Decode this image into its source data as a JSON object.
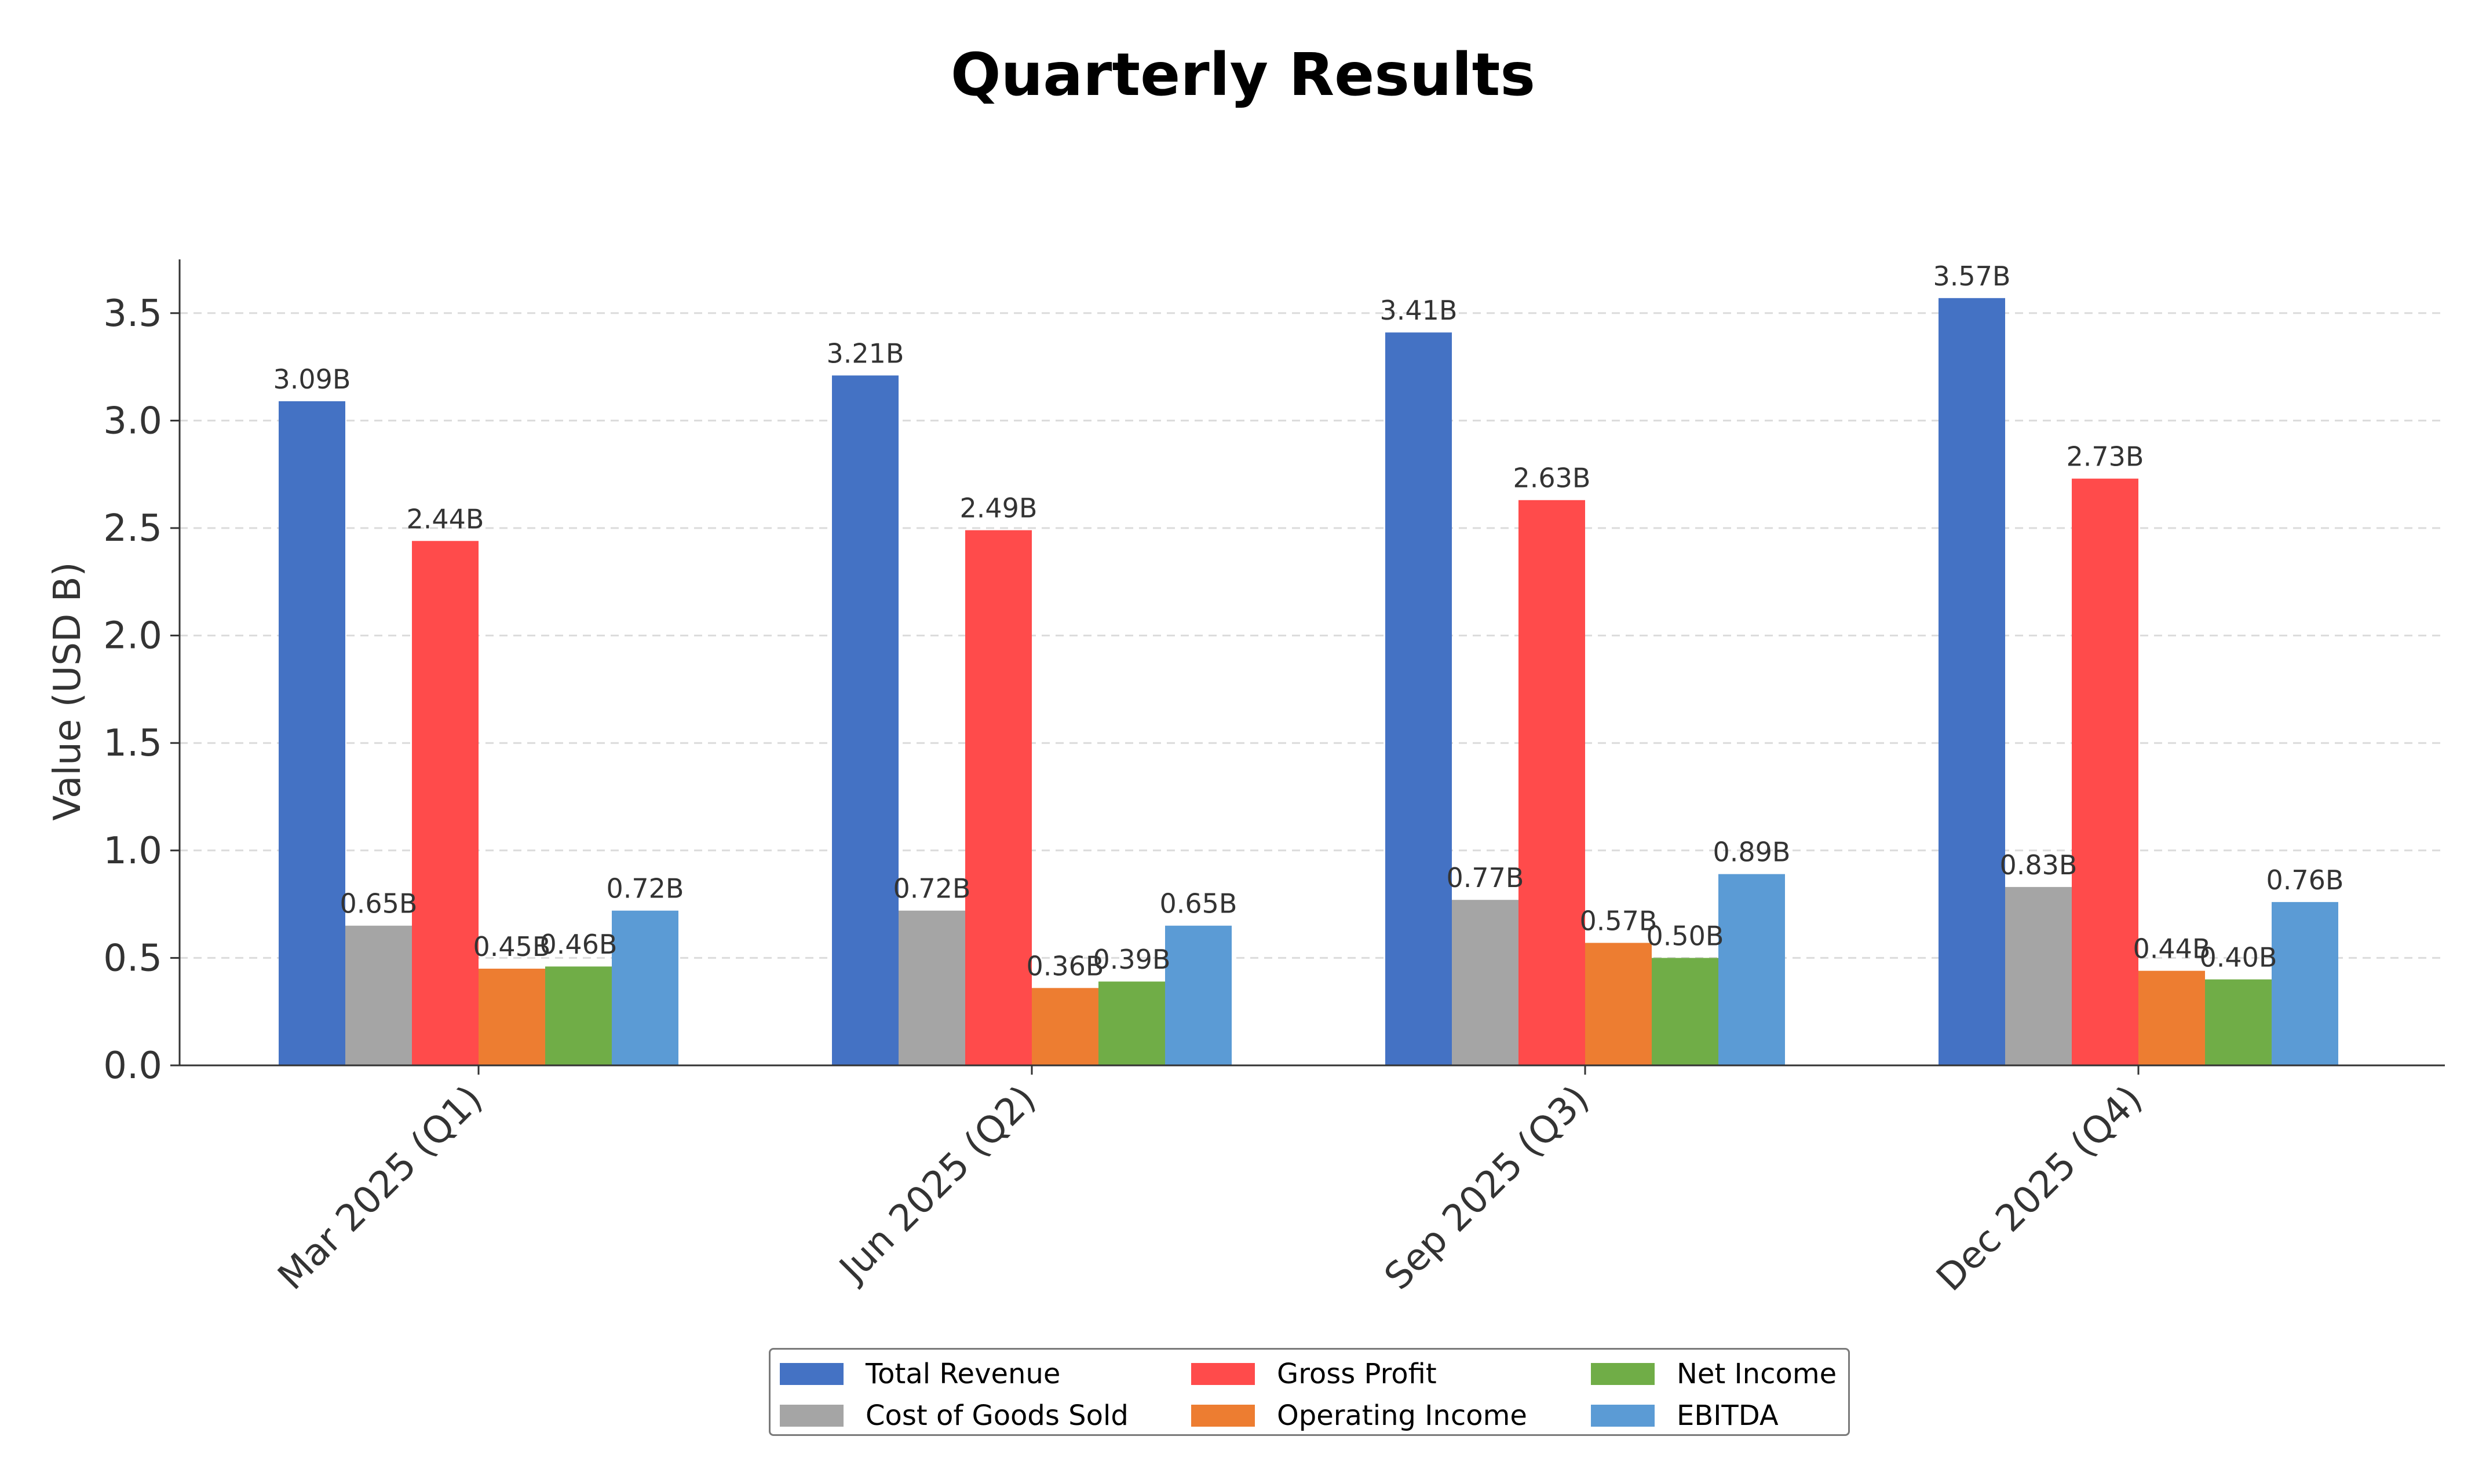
{
  "chart_data": {
    "type": "bar",
    "title": "Quarterly Results",
    "xlabel": "",
    "ylabel": "Value (USD B)",
    "categories": [
      "Mar 2025 (Q1)",
      "Jun 2025 (Q2)",
      "Sep 2025 (Q3)",
      "Dec 2025 (Q4)"
    ],
    "series": [
      {
        "name": "Total Revenue",
        "color": "#4472C4",
        "values": [
          3.09,
          3.21,
          3.41,
          3.57
        ],
        "labels": [
          "3.09B",
          "3.21B",
          "3.41B",
          "3.57B"
        ]
      },
      {
        "name": "Cost of Goods Sold",
        "color": "#A5A5A5",
        "values": [
          0.65,
          0.72,
          0.77,
          0.83
        ],
        "labels": [
          "0.65B",
          "0.72B",
          "0.77B",
          "0.83B"
        ]
      },
      {
        "name": "Gross Profit",
        "color": "#FF4B4B",
        "values": [
          2.44,
          2.49,
          2.63,
          2.73
        ],
        "labels": [
          "2.44B",
          "2.49B",
          "2.63B",
          "2.73B"
        ]
      },
      {
        "name": "Operating Income",
        "color": "#ED7D31",
        "values": [
          0.45,
          0.36,
          0.57,
          0.44
        ],
        "labels": [
          "0.45B",
          "0.36B",
          "0.57B",
          "0.44B"
        ]
      },
      {
        "name": "Net Income",
        "color": "#70AD47",
        "values": [
          0.46,
          0.39,
          0.5,
          0.4
        ],
        "labels": [
          "0.46B",
          "0.39B",
          "0.50B",
          "0.40B"
        ]
      },
      {
        "name": "EBITDA",
        "color": "#5B9BD5",
        "values": [
          0.72,
          0.65,
          0.89,
          0.76
        ],
        "labels": [
          "0.72B",
          "0.65B",
          "0.89B",
          "0.76B"
        ]
      }
    ],
    "ylim": [
      0,
      3.75
    ],
    "yticks": [
      0.0,
      0.5,
      1.0,
      1.5,
      2.0,
      2.5,
      3.0,
      3.5
    ],
    "ytick_labels": [
      "0.0",
      "0.5",
      "1.0",
      "1.5",
      "2.0",
      "2.5",
      "3.0",
      "3.5"
    ],
    "grid": "horizontal dashed",
    "legend_position": "bottom-center"
  }
}
